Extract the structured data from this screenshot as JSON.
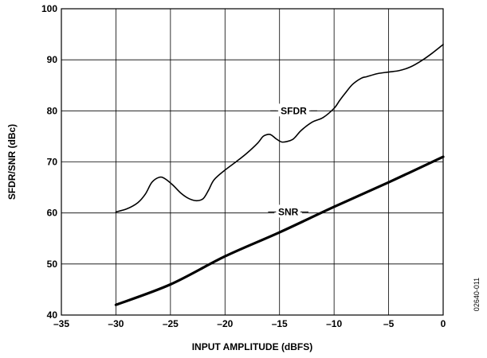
{
  "chart_data": {
    "type": "line",
    "xlabel": "INPUT AMPLITUDE (dBFS)",
    "ylabel": "SFDR/SNR (dBc)",
    "xlim": [
      -35,
      0
    ],
    "ylim": [
      40,
      100
    ],
    "x_ticks": [
      -35,
      -30,
      -25,
      -20,
      -15,
      -10,
      -5,
      0
    ],
    "y_ticks": [
      40,
      50,
      60,
      70,
      80,
      90,
      100
    ],
    "x_tick_labels": [
      "–35",
      "–30",
      "–25",
      "–20",
      "–15",
      "–10",
      "–5",
      "0"
    ],
    "y_tick_labels": [
      "40",
      "50",
      "60",
      "70",
      "80",
      "90",
      "100"
    ],
    "grid": true,
    "series": [
      {
        "name": "SFDR",
        "x": [
          -30,
          -29,
          -28,
          -27.3,
          -26.7,
          -26,
          -25.5,
          -24.8,
          -24,
          -23.3,
          -22.6,
          -22,
          -21.5,
          -21,
          -20,
          -19,
          -18,
          -17,
          -16.5,
          -16,
          -15.7,
          -15.3,
          -14.8,
          -14.3,
          -13.8,
          -13.5,
          -13,
          -12,
          -11,
          -10,
          -9.5,
          -9,
          -8.3,
          -7.5,
          -7,
          -6,
          -5,
          -4,
          -3,
          -2,
          -1,
          0
        ],
        "values": [
          60.2,
          60.8,
          62.0,
          63.7,
          66.0,
          67.0,
          66.7,
          65.5,
          63.8,
          62.8,
          62.4,
          62.8,
          64.5,
          66.5,
          68.4,
          70.0,
          71.7,
          73.7,
          75.0,
          75.4,
          75.2,
          74.5,
          73.9,
          74.0,
          74.4,
          75.0,
          76.2,
          77.8,
          78.7,
          80.5,
          82.0,
          83.4,
          85.2,
          86.4,
          86.7,
          87.3,
          87.6,
          87.9,
          88.6,
          89.8,
          91.3,
          93.0
        ]
      },
      {
        "name": "SNR",
        "x": [
          -30,
          -25,
          -20,
          -15,
          -10,
          -5,
          0
        ],
        "values": [
          42.0,
          46.0,
          51.5,
          56.2,
          61.2,
          66.0,
          71.0
        ]
      }
    ],
    "annotations": [
      "SFDR",
      "SNR"
    ],
    "figure_code": "02640-011"
  }
}
